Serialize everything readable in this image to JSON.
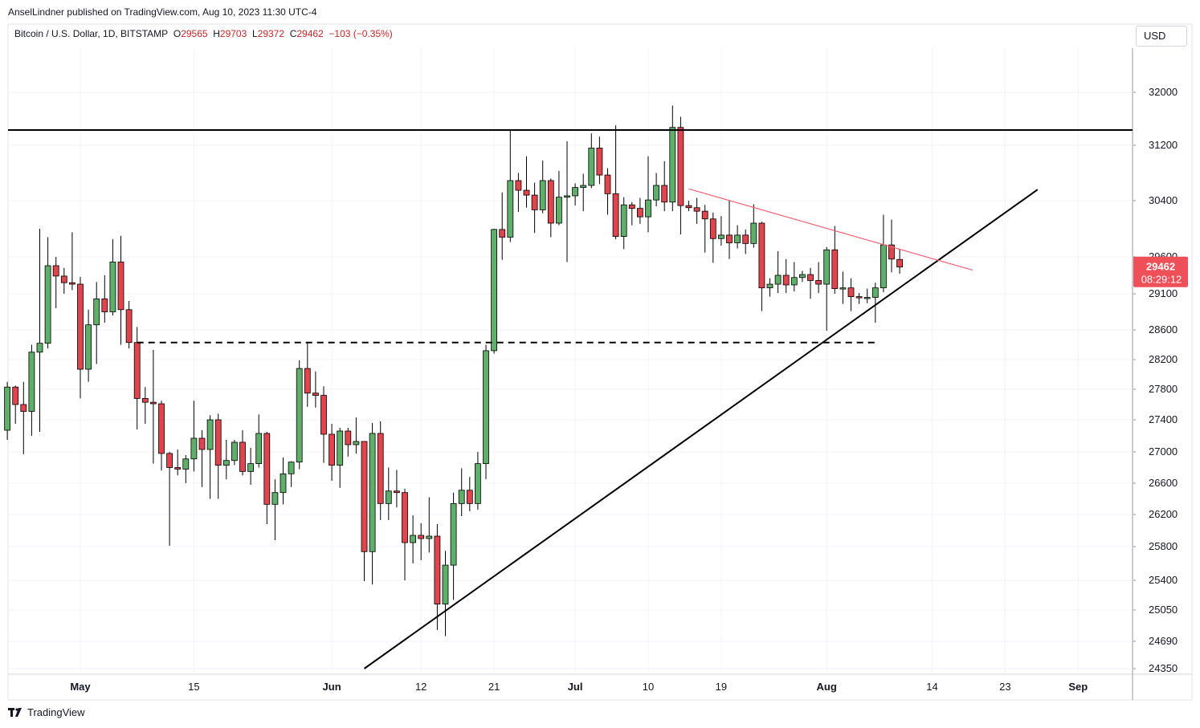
{
  "header": {
    "publisher": "AnselLindner published on TradingView.com, Aug 10, 2023 11:30 UTC-4",
    "symbol": "Bitcoin / U.S. Dollar, 1D, BITSTAMP",
    "o_label": "O",
    "o": "29565",
    "h_label": "H",
    "h": "29703",
    "l_label": "L",
    "l": "29372",
    "c_label": "C",
    "c": "29462",
    "change": "−103 (−0.35%)"
  },
  "currency": "USD",
  "footer": {
    "brand": "TradingView"
  },
  "colors": {
    "up": "#5fae6a",
    "down": "#e0454e",
    "trendline_red": "#f06272",
    "line": "#000000",
    "price_tag": "#ee4f59"
  },
  "chart_data": {
    "type": "candlestick",
    "price_tag": {
      "price": "29462",
      "countdown": "08:29:12"
    },
    "y_ticks": [
      32000,
      31200,
      30400,
      29600,
      29100,
      28600,
      28200,
      27800,
      27400,
      27000,
      26600,
      26200,
      25800,
      25400,
      25050,
      24690,
      24350
    ],
    "x_ticks": [
      {
        "date": "2023-05-01",
        "label": "May"
      },
      {
        "date": "2023-05-15",
        "label": "15"
      },
      {
        "date": "2023-06-01",
        "label": "Jun"
      },
      {
        "date": "2023-06-12",
        "label": "12"
      },
      {
        "date": "2023-06-21",
        "label": "21"
      },
      {
        "date": "2023-07-01",
        "label": "Jul"
      },
      {
        "date": "2023-07-10",
        "label": "10"
      },
      {
        "date": "2023-07-19",
        "label": "19"
      },
      {
        "date": "2023-08-01",
        "label": "Aug"
      },
      {
        "date": "2023-08-14",
        "label": "14"
      },
      {
        "date": "2023-08-23",
        "label": "23"
      },
      {
        "date": "2023-09-01",
        "label": "Sep"
      }
    ],
    "candles": [
      {
        "date": "2023-04-22",
        "o": 27270,
        "h": 27900,
        "l": 27150,
        "c": 27830
      },
      {
        "date": "2023-04-23",
        "o": 27830,
        "h": 27850,
        "l": 27350,
        "c": 27600
      },
      {
        "date": "2023-04-24",
        "o": 27600,
        "h": 27900,
        "l": 26970,
        "c": 27510
      },
      {
        "date": "2023-04-25",
        "o": 27510,
        "h": 28400,
        "l": 27200,
        "c": 28300
      },
      {
        "date": "2023-04-26",
        "o": 28300,
        "h": 30000,
        "l": 27250,
        "c": 28420
      },
      {
        "date": "2023-04-27",
        "o": 28420,
        "h": 29880,
        "l": 28350,
        "c": 29480
      },
      {
        "date": "2023-04-28",
        "o": 29480,
        "h": 29600,
        "l": 28900,
        "c": 29340
      },
      {
        "date": "2023-04-29",
        "o": 29340,
        "h": 29450,
        "l": 29100,
        "c": 29250
      },
      {
        "date": "2023-04-30",
        "o": 29250,
        "h": 29950,
        "l": 29150,
        "c": 29230
      },
      {
        "date": "2023-05-01",
        "o": 29230,
        "h": 29330,
        "l": 27680,
        "c": 28070
      },
      {
        "date": "2023-05-02",
        "o": 28070,
        "h": 28880,
        "l": 27900,
        "c": 28670
      },
      {
        "date": "2023-05-03",
        "o": 28670,
        "h": 29260,
        "l": 28140,
        "c": 29030
      },
      {
        "date": "2023-05-04",
        "o": 29030,
        "h": 29350,
        "l": 28700,
        "c": 28850
      },
      {
        "date": "2023-05-05",
        "o": 28850,
        "h": 29850,
        "l": 28800,
        "c": 29530
      },
      {
        "date": "2023-05-06",
        "o": 29530,
        "h": 29900,
        "l": 28400,
        "c": 28880
      },
      {
        "date": "2023-05-07",
        "o": 28880,
        "h": 29000,
        "l": 28350,
        "c": 28430
      },
      {
        "date": "2023-05-08",
        "o": 28430,
        "h": 28640,
        "l": 27280,
        "c": 27680
      },
      {
        "date": "2023-05-09",
        "o": 27680,
        "h": 27830,
        "l": 27350,
        "c": 27630
      },
      {
        "date": "2023-05-10",
        "o": 27630,
        "h": 28330,
        "l": 26850,
        "c": 27610
      },
      {
        "date": "2023-05-11",
        "o": 27610,
        "h": 27650,
        "l": 26760,
        "c": 26980
      },
      {
        "date": "2023-05-12",
        "o": 26980,
        "h": 27000,
        "l": 25810,
        "c": 26800
      },
      {
        "date": "2023-05-13",
        "o": 26800,
        "h": 27030,
        "l": 26700,
        "c": 26780
      },
      {
        "date": "2023-05-14",
        "o": 26780,
        "h": 26960,
        "l": 26600,
        "c": 26910
      },
      {
        "date": "2023-05-15",
        "o": 26910,
        "h": 27650,
        "l": 26750,
        "c": 27170
      },
      {
        "date": "2023-05-16",
        "o": 27170,
        "h": 27270,
        "l": 26550,
        "c": 27030
      },
      {
        "date": "2023-05-17",
        "o": 27030,
        "h": 27460,
        "l": 26400,
        "c": 27400
      },
      {
        "date": "2023-05-18",
        "o": 27400,
        "h": 27480,
        "l": 26400,
        "c": 26830
      },
      {
        "date": "2023-05-19",
        "o": 26830,
        "h": 27150,
        "l": 26650,
        "c": 26890
      },
      {
        "date": "2023-05-20",
        "o": 26890,
        "h": 27150,
        "l": 26830,
        "c": 27120
      },
      {
        "date": "2023-05-21",
        "o": 27120,
        "h": 27270,
        "l": 26700,
        "c": 26750
      },
      {
        "date": "2023-05-22",
        "o": 26750,
        "h": 27050,
        "l": 26580,
        "c": 26850
      },
      {
        "date": "2023-05-23",
        "o": 26850,
        "h": 27470,
        "l": 26800,
        "c": 27230
      },
      {
        "date": "2023-05-24",
        "o": 27230,
        "h": 27250,
        "l": 26080,
        "c": 26330
      },
      {
        "date": "2023-05-25",
        "o": 26330,
        "h": 26650,
        "l": 25880,
        "c": 26480
      },
      {
        "date": "2023-05-26",
        "o": 26480,
        "h": 26930,
        "l": 26330,
        "c": 26720
      },
      {
        "date": "2023-05-27",
        "o": 26720,
        "h": 26880,
        "l": 26550,
        "c": 26870
      },
      {
        "date": "2023-05-28",
        "o": 26870,
        "h": 28190,
        "l": 26780,
        "c": 28080
      },
      {
        "date": "2023-05-29",
        "o": 28080,
        "h": 28430,
        "l": 27570,
        "c": 27750
      },
      {
        "date": "2023-05-30",
        "o": 27750,
        "h": 28040,
        "l": 27560,
        "c": 27720
      },
      {
        "date": "2023-05-31",
        "o": 27720,
        "h": 27840,
        "l": 26860,
        "c": 27220
      },
      {
        "date": "2023-06-01",
        "o": 27220,
        "h": 27350,
        "l": 26630,
        "c": 26830
      },
      {
        "date": "2023-06-02",
        "o": 26830,
        "h": 27300,
        "l": 26540,
        "c": 27260
      },
      {
        "date": "2023-06-03",
        "o": 27260,
        "h": 27300,
        "l": 26940,
        "c": 27090
      },
      {
        "date": "2023-06-04",
        "o": 27090,
        "h": 27430,
        "l": 26980,
        "c": 27130
      },
      {
        "date": "2023-06-05",
        "o": 27130,
        "h": 27130,
        "l": 25390,
        "c": 25740
      },
      {
        "date": "2023-06-06",
        "o": 25740,
        "h": 27360,
        "l": 25350,
        "c": 27230
      },
      {
        "date": "2023-06-07",
        "o": 27230,
        "h": 27380,
        "l": 26130,
        "c": 26340
      },
      {
        "date": "2023-06-08",
        "o": 26340,
        "h": 26800,
        "l": 26130,
        "c": 26500
      },
      {
        "date": "2023-06-09",
        "o": 26500,
        "h": 26770,
        "l": 26290,
        "c": 26480
      },
      {
        "date": "2023-06-10",
        "o": 26480,
        "h": 26530,
        "l": 25400,
        "c": 25850
      },
      {
        "date": "2023-06-11",
        "o": 25850,
        "h": 26190,
        "l": 25600,
        "c": 25940
      },
      {
        "date": "2023-06-12",
        "o": 25940,
        "h": 26090,
        "l": 25640,
        "c": 25900
      },
      {
        "date": "2023-06-13",
        "o": 25900,
        "h": 26420,
        "l": 25730,
        "c": 25930
      },
      {
        "date": "2023-06-14",
        "o": 25930,
        "h": 26080,
        "l": 24820,
        "c": 25120
      },
      {
        "date": "2023-06-15",
        "o": 25120,
        "h": 25750,
        "l": 24750,
        "c": 25580
      },
      {
        "date": "2023-06-16",
        "o": 25580,
        "h": 26480,
        "l": 25170,
        "c": 26340
      },
      {
        "date": "2023-06-17",
        "o": 26340,
        "h": 26790,
        "l": 26180,
        "c": 26510
      },
      {
        "date": "2023-06-18",
        "o": 26510,
        "h": 26680,
        "l": 26240,
        "c": 26340
      },
      {
        "date": "2023-06-19",
        "o": 26340,
        "h": 27000,
        "l": 26260,
        "c": 26850
      },
      {
        "date": "2023-06-20",
        "o": 26850,
        "h": 28400,
        "l": 26650,
        "c": 28320
      },
      {
        "date": "2023-06-21",
        "o": 28320,
        "h": 30000,
        "l": 28280,
        "c": 29990
      },
      {
        "date": "2023-06-22",
        "o": 29990,
        "h": 30520,
        "l": 29560,
        "c": 29880
      },
      {
        "date": "2023-06-23",
        "o": 29880,
        "h": 31430,
        "l": 29810,
        "c": 30690
      },
      {
        "date": "2023-06-24",
        "o": 30690,
        "h": 30800,
        "l": 30240,
        "c": 30550
      },
      {
        "date": "2023-06-25",
        "o": 30550,
        "h": 31040,
        "l": 30300,
        "c": 30480
      },
      {
        "date": "2023-06-26",
        "o": 30480,
        "h": 30660,
        "l": 29940,
        "c": 30270
      },
      {
        "date": "2023-06-27",
        "o": 30270,
        "h": 30980,
        "l": 30220,
        "c": 30690
      },
      {
        "date": "2023-06-28",
        "o": 30690,
        "h": 30720,
        "l": 29880,
        "c": 30080
      },
      {
        "date": "2023-06-29",
        "o": 30080,
        "h": 30830,
        "l": 30050,
        "c": 30450
      },
      {
        "date": "2023-06-30",
        "o": 30450,
        "h": 31260,
        "l": 29530,
        "c": 30470
      },
      {
        "date": "2023-07-01",
        "o": 30470,
        "h": 30650,
        "l": 30330,
        "c": 30590
      },
      {
        "date": "2023-07-02",
        "o": 30590,
        "h": 30790,
        "l": 30250,
        "c": 30620
      },
      {
        "date": "2023-07-03",
        "o": 30620,
        "h": 31380,
        "l": 30580,
        "c": 31160
      },
      {
        "date": "2023-07-04",
        "o": 31160,
        "h": 31330,
        "l": 30640,
        "c": 30770
      },
      {
        "date": "2023-07-05",
        "o": 30770,
        "h": 30870,
        "l": 30200,
        "c": 30500
      },
      {
        "date": "2023-07-06",
        "o": 30500,
        "h": 31500,
        "l": 29850,
        "c": 29890
      },
      {
        "date": "2023-07-07",
        "o": 29890,
        "h": 30450,
        "l": 29710,
        "c": 30340
      },
      {
        "date": "2023-07-08",
        "o": 30340,
        "h": 30380,
        "l": 30050,
        "c": 30290
      },
      {
        "date": "2023-07-09",
        "o": 30290,
        "h": 30440,
        "l": 30070,
        "c": 30170
      },
      {
        "date": "2023-07-10",
        "o": 30170,
        "h": 31040,
        "l": 29950,
        "c": 30410
      },
      {
        "date": "2023-07-11",
        "o": 30410,
        "h": 30800,
        "l": 30320,
        "c": 30620
      },
      {
        "date": "2023-07-12",
        "o": 30620,
        "h": 30970,
        "l": 30250,
        "c": 30380
      },
      {
        "date": "2023-07-13",
        "o": 30380,
        "h": 31800,
        "l": 30250,
        "c": 31470
      },
      {
        "date": "2023-07-14",
        "o": 31470,
        "h": 31630,
        "l": 29920,
        "c": 30330
      },
      {
        "date": "2023-07-15",
        "o": 30330,
        "h": 30400,
        "l": 30250,
        "c": 30300
      },
      {
        "date": "2023-07-16",
        "o": 30300,
        "h": 30440,
        "l": 30070,
        "c": 30250
      },
      {
        "date": "2023-07-17",
        "o": 30250,
        "h": 30340,
        "l": 29660,
        "c": 30140
      },
      {
        "date": "2023-07-18",
        "o": 30140,
        "h": 30230,
        "l": 29520,
        "c": 29860
      },
      {
        "date": "2023-07-19",
        "o": 29860,
        "h": 30180,
        "l": 29760,
        "c": 29910
      },
      {
        "date": "2023-07-20",
        "o": 29910,
        "h": 30410,
        "l": 29570,
        "c": 29800
      },
      {
        "date": "2023-07-21",
        "o": 29800,
        "h": 30050,
        "l": 29720,
        "c": 29910
      },
      {
        "date": "2023-07-22",
        "o": 29910,
        "h": 29990,
        "l": 29640,
        "c": 29790
      },
      {
        "date": "2023-07-23",
        "o": 29790,
        "h": 30350,
        "l": 29730,
        "c": 30080
      },
      {
        "date": "2023-07-24",
        "o": 30080,
        "h": 30100,
        "l": 28860,
        "c": 29180
      },
      {
        "date": "2023-07-25",
        "o": 29180,
        "h": 29310,
        "l": 29060,
        "c": 29230
      },
      {
        "date": "2023-07-26",
        "o": 29230,
        "h": 29680,
        "l": 29110,
        "c": 29350
      },
      {
        "date": "2023-07-27",
        "o": 29350,
        "h": 29570,
        "l": 29110,
        "c": 29220
      },
      {
        "date": "2023-07-28",
        "o": 29220,
        "h": 29530,
        "l": 29130,
        "c": 29320
      },
      {
        "date": "2023-07-29",
        "o": 29320,
        "h": 29410,
        "l": 29260,
        "c": 29360
      },
      {
        "date": "2023-07-30",
        "o": 29360,
        "h": 29450,
        "l": 29030,
        "c": 29280
      },
      {
        "date": "2023-07-31",
        "o": 29280,
        "h": 29530,
        "l": 29110,
        "c": 29230
      },
      {
        "date": "2023-08-01",
        "o": 29230,
        "h": 29740,
        "l": 28590,
        "c": 29700
      },
      {
        "date": "2023-08-02",
        "o": 29700,
        "h": 30040,
        "l": 29100,
        "c": 29170
      },
      {
        "date": "2023-08-03",
        "o": 29170,
        "h": 29400,
        "l": 28960,
        "c": 29180
      },
      {
        "date": "2023-08-04",
        "o": 29180,
        "h": 29310,
        "l": 28860,
        "c": 29060
      },
      {
        "date": "2023-08-05",
        "o": 29060,
        "h": 29110,
        "l": 28960,
        "c": 29050
      },
      {
        "date": "2023-08-06",
        "o": 29050,
        "h": 29170,
        "l": 28970,
        "c": 29050
      },
      {
        "date": "2023-08-07",
        "o": 29050,
        "h": 29250,
        "l": 28700,
        "c": 29180
      },
      {
        "date": "2023-08-08",
        "o": 29180,
        "h": 30200,
        "l": 29120,
        "c": 29770
      },
      {
        "date": "2023-08-09",
        "o": 29770,
        "h": 30130,
        "l": 29390,
        "c": 29570
      },
      {
        "date": "2023-08-10",
        "o": 29565,
        "h": 29703,
        "l": 29372,
        "c": 29462
      }
    ],
    "drawings": [
      {
        "type": "horizontal",
        "price": 31430,
        "style": "solid",
        "color": "#000000"
      },
      {
        "type": "segment",
        "from": {
          "date": "2023-05-08",
          "price": 28430
        },
        "to": {
          "date": "2023-08-07",
          "price": 28430
        },
        "style": "dashed",
        "color": "#000000"
      },
      {
        "type": "trendline",
        "from": {
          "date": "2023-06-05",
          "price": 24350
        },
        "to": {
          "date": "2023-08-27",
          "price": 30560
        },
        "style": "solid",
        "color": "#000000"
      },
      {
        "type": "trendline",
        "from": {
          "date": "2023-07-15",
          "price": 30570
        },
        "to": {
          "date": "2023-08-19",
          "price": 29420
        },
        "style": "solid",
        "color": "#f06272"
      }
    ]
  }
}
